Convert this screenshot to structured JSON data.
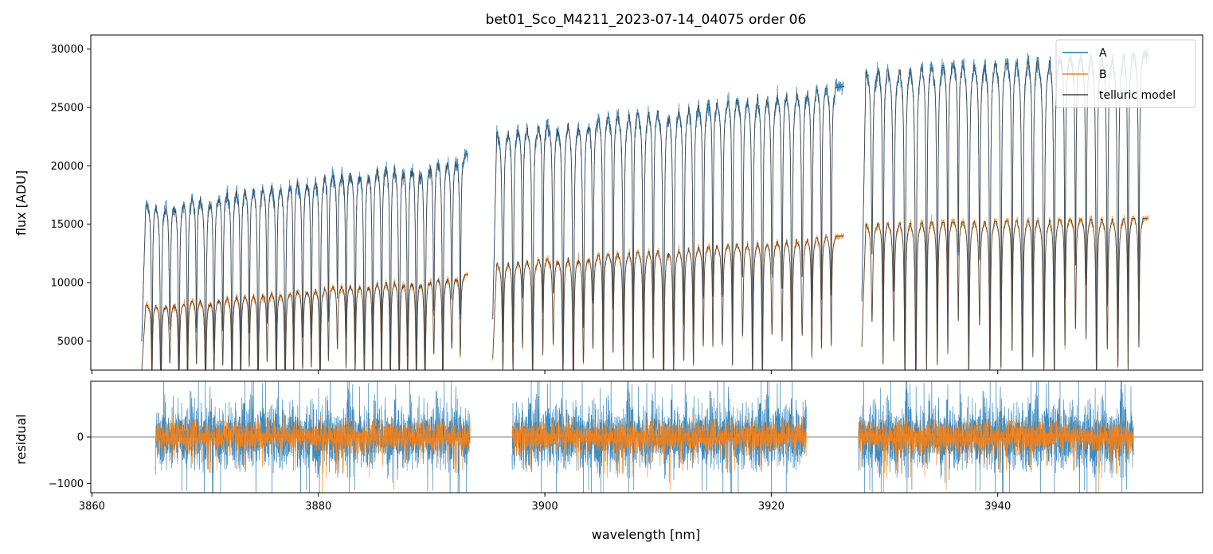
{
  "chart_data": [
    {
      "type": "line",
      "panel": "top",
      "title": "bet01_Sco_M4211_2023-07-14_04075  order 06",
      "xlabel": "",
      "ylabel": "flux [ADU]",
      "xlim": [
        3859.9,
        3958.1
      ],
      "ylim": [
        2500,
        31200
      ],
      "yticks": [
        5000,
        10000,
        15000,
        20000,
        25000,
        30000
      ],
      "xticks": [
        3860,
        3880,
        3900,
        3920,
        3940
      ],
      "legend_position": "top-right",
      "segments": [
        {
          "x": [
            3864.4,
            3893.2
          ],
          "A_cont": [
            16500,
            21000
          ],
          "B_cont": [
            8000,
            10700
          ]
        },
        {
          "x": [
            3895.4,
            3926.4
          ],
          "A_cont": [
            22800,
            26800
          ],
          "B_cont": [
            11600,
            14000
          ]
        },
        {
          "x": [
            3928.0,
            3953.3
          ],
          "A_cont": [
            28000,
            29500
          ],
          "B_cont": [
            15000,
            15500
          ]
        }
      ],
      "series": [
        {
          "name": "A",
          "color": "#1f77b4"
        },
        {
          "name": "B",
          "color": "#ff7f0e"
        },
        {
          "name": "telluric model",
          "color": "#444444"
        }
      ]
    },
    {
      "type": "line",
      "panel": "bottom",
      "xlabel": "wavelength [nm]",
      "ylabel": "residual",
      "xlim": [
        3859.9,
        3958.1
      ],
      "ylim": [
        -1200,
        1200
      ],
      "yticks": [
        -1000,
        0
      ],
      "xticks": [
        3860,
        3880,
        3900,
        3920,
        3940
      ],
      "segments": [
        {
          "x": [
            3865.6,
            3893.4
          ]
        },
        {
          "x": [
            3897.1,
            3923.1
          ]
        },
        {
          "x": [
            3927.7,
            3952.0
          ]
        }
      ],
      "series": [
        {
          "name": "A",
          "color": "#1f77b4"
        },
        {
          "name": "B",
          "color": "#ff7f0e"
        }
      ]
    }
  ]
}
